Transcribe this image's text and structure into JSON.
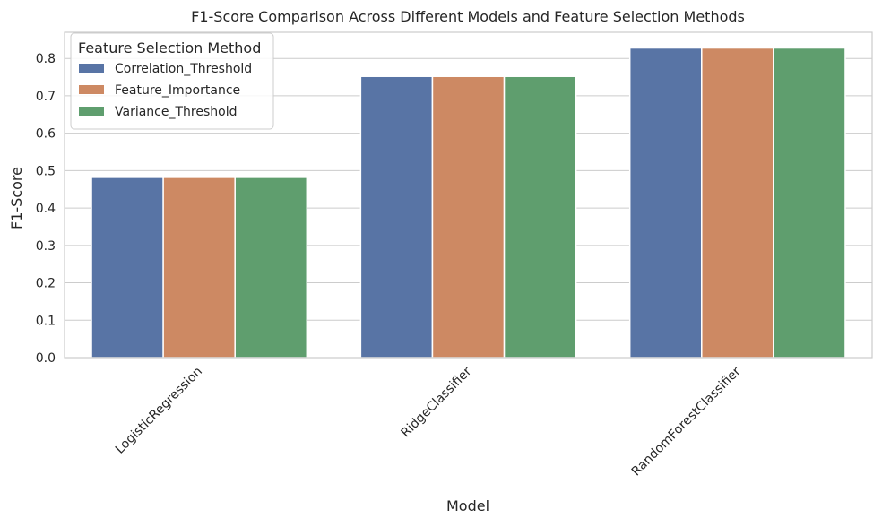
{
  "chart_data": {
    "type": "bar",
    "title": "F1-Score Comparison Across Different Models and Feature Selection Methods",
    "xlabel": "Model",
    "ylabel": "F1-Score",
    "categories": [
      "LogisticRegression",
      "RidgeClassifier",
      "RandomForestClassifier"
    ],
    "series": [
      {
        "name": "Correlation_Threshold",
        "values": [
          0.482,
          0.752,
          0.828
        ],
        "color": "#5874a5"
      },
      {
        "name": "Feature_Importance",
        "values": [
          0.482,
          0.752,
          0.828
        ],
        "color": "#cd8963"
      },
      {
        "name": "Variance_Threshold",
        "values": [
          0.482,
          0.752,
          0.828
        ],
        "color": "#5f9e6e"
      }
    ],
    "ylim": [
      0,
      0.87
    ],
    "yticks": [
      "0.0",
      "0.1",
      "0.2",
      "0.3",
      "0.4",
      "0.5",
      "0.6",
      "0.7",
      "0.8"
    ],
    "grid": true,
    "legend": {
      "title": "Feature Selection Method",
      "placement": "top-left"
    }
  }
}
